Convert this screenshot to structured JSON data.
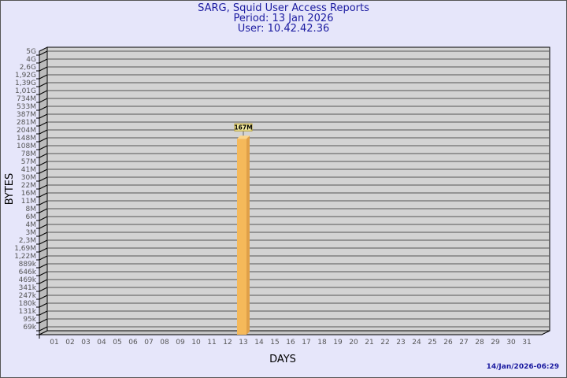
{
  "header": {
    "title": "SARG, Squid User Access Reports",
    "period": "Period: 13 Jan 2026",
    "user": "User: 10.42.42.36"
  },
  "footer": {
    "timestamp": "14/Jan/2026-06:29"
  },
  "chart_data": {
    "type": "bar",
    "title": "SARG, Squid User Access Reports",
    "xlabel": "DAYS",
    "ylabel": "BYTES",
    "y_scale": "log",
    "y_tick_labels": [
      "5G",
      "4G",
      "2,6G",
      "1,92G",
      "1,39G",
      "1,01G",
      "734M",
      "533M",
      "387M",
      "281M",
      "204M",
      "148M",
      "108M",
      "78M",
      "57M",
      "41M",
      "30M",
      "22M",
      "16M",
      "11M",
      "8M",
      "6M",
      "4M",
      "3M",
      "2,3M",
      "1,69M",
      "1,22M",
      "889k",
      "646k",
      "469k",
      "341k",
      "247k",
      "180k",
      "131k",
      "95k",
      "69k"
    ],
    "categories": [
      "01",
      "02",
      "03",
      "04",
      "05",
      "06",
      "07",
      "08",
      "09",
      "10",
      "11",
      "12",
      "13",
      "14",
      "15",
      "16",
      "17",
      "18",
      "19",
      "20",
      "21",
      "22",
      "23",
      "24",
      "25",
      "26",
      "27",
      "28",
      "29",
      "30",
      "31"
    ],
    "series": [
      {
        "values": [
          null,
          null,
          null,
          null,
          null,
          null,
          null,
          null,
          null,
          null,
          null,
          null,
          167000000,
          null,
          null,
          null,
          null,
          null,
          null,
          null,
          null,
          null,
          null,
          null,
          null,
          null,
          null,
          null,
          null,
          null,
          null
        ]
      }
    ],
    "data_labels": {
      "13": "167M"
    },
    "grid": true,
    "colors": {
      "bar": "#f5b95a",
      "panel": "#d3d3d3",
      "background": "#e6e6fa",
      "title": "#1a1aa0"
    }
  }
}
